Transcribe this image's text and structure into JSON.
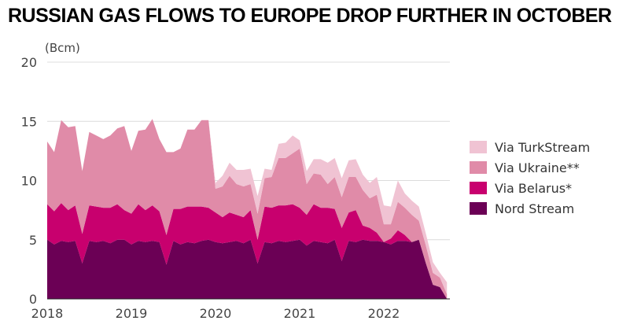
{
  "title": "RUSSIAN GAS FLOWS TO EUROPE DROP FURTHER IN OCTOBER",
  "chart_data": {
    "type": "area",
    "stacked": true,
    "unit_label": "(Bcm)",
    "ylim": [
      0,
      20
    ],
    "y_ticks": [
      0,
      5,
      10,
      15,
      20
    ],
    "x_ticks": [
      "2018",
      "2019",
      "2020",
      "2021",
      "2022"
    ],
    "x": [
      "2018-01",
      "2018-02",
      "2018-03",
      "2018-04",
      "2018-05",
      "2018-06",
      "2018-07",
      "2018-08",
      "2018-09",
      "2018-10",
      "2018-11",
      "2018-12",
      "2019-01",
      "2019-02",
      "2019-03",
      "2019-04",
      "2019-05",
      "2019-06",
      "2019-07",
      "2019-08",
      "2019-09",
      "2019-10",
      "2019-11",
      "2019-12",
      "2020-01",
      "2020-02",
      "2020-03",
      "2020-04",
      "2020-05",
      "2020-06",
      "2020-07",
      "2020-08",
      "2020-09",
      "2020-10",
      "2020-11",
      "2020-12",
      "2021-01",
      "2021-02",
      "2021-03",
      "2021-04",
      "2021-05",
      "2021-06",
      "2021-07",
      "2021-08",
      "2021-09",
      "2021-10",
      "2021-11",
      "2021-12",
      "2022-01",
      "2022-02",
      "2022-03",
      "2022-04",
      "2022-05",
      "2022-06",
      "2022-07",
      "2022-08",
      "2022-09",
      "2022-10"
    ],
    "grid": true,
    "legend_position": "right",
    "series": [
      {
        "name": "Nord Stream",
        "color": "#6b0055",
        "values": [
          5.0,
          4.6,
          4.9,
          4.8,
          4.9,
          3.0,
          4.9,
          4.8,
          4.9,
          4.7,
          5.0,
          5.0,
          4.6,
          4.9,
          4.8,
          4.9,
          4.8,
          2.9,
          4.9,
          4.6,
          4.8,
          4.7,
          4.9,
          5.0,
          4.8,
          4.7,
          4.8,
          4.9,
          4.7,
          5.0,
          3.0,
          4.8,
          4.7,
          4.9,
          4.8,
          4.9,
          5.0,
          4.5,
          4.9,
          4.8,
          4.7,
          5.0,
          3.2,
          4.9,
          4.8,
          5.0,
          4.9,
          4.9,
          4.8,
          4.6,
          4.9,
          4.9,
          4.8,
          5.0,
          3.0,
          1.2,
          1.0,
          0.0
        ]
      },
      {
        "name": "Via Belarus*",
        "color": "#c8006e",
        "values": [
          3.0,
          2.8,
          3.2,
          2.7,
          3.0,
          2.5,
          3.0,
          3.0,
          2.8,
          3.0,
          3.0,
          2.5,
          2.6,
          3.1,
          2.7,
          3.0,
          2.6,
          2.5,
          2.7,
          3.0,
          3.0,
          3.1,
          2.9,
          2.7,
          2.5,
          2.2,
          2.5,
          2.2,
          2.2,
          2.5,
          2.0,
          3.0,
          3.0,
          3.0,
          3.1,
          3.1,
          2.7,
          2.6,
          3.1,
          2.9,
          3.0,
          2.6,
          2.8,
          2.4,
          2.7,
          1.2,
          1.1,
          0.7,
          0.0,
          0.5,
          0.9,
          0.5,
          0.0,
          0.0,
          0.0,
          0.0,
          0.0,
          0.0
        ]
      },
      {
        "name": "Via Ukraine**",
        "color": "#e08ba8",
        "values": [
          5.3,
          5.0,
          7.0,
          7.0,
          6.7,
          5.3,
          6.2,
          6.0,
          5.8,
          6.1,
          6.4,
          7.1,
          5.3,
          6.2,
          6.8,
          7.3,
          6.1,
          7.0,
          4.8,
          5.1,
          6.5,
          6.5,
          7.3,
          7.4,
          2.0,
          2.6,
          3.1,
          2.6,
          2.6,
          2.2,
          2.2,
          2.4,
          2.6,
          4.0,
          4.0,
          4.3,
          5.0,
          2.6,
          2.6,
          2.8,
          2.0,
          2.7,
          2.6,
          3.0,
          2.8,
          3.0,
          2.5,
          3.2,
          1.5,
          1.2,
          2.4,
          2.3,
          2.3,
          1.6,
          1.5,
          1.0,
          0.8,
          0.4
        ]
      },
      {
        "name": "Via TurkStream",
        "color": "#f0c3d3",
        "values": [
          0.0,
          0.0,
          0.0,
          0.0,
          0.0,
          0.0,
          0.0,
          0.0,
          0.0,
          0.0,
          0.0,
          0.0,
          0.0,
          0.0,
          0.0,
          0.0,
          0.0,
          0.0,
          0.0,
          0.0,
          0.0,
          0.0,
          0.0,
          0.0,
          0.5,
          0.9,
          1.1,
          1.2,
          1.4,
          1.3,
          1.5,
          0.8,
          0.6,
          1.2,
          1.3,
          1.5,
          0.7,
          1.1,
          1.2,
          1.3,
          1.8,
          1.6,
          1.6,
          1.4,
          1.5,
          1.3,
          1.3,
          1.5,
          1.6,
          1.5,
          1.8,
          1.2,
          1.2,
          1.2,
          1.0,
          0.9,
          0.4,
          1.0
        ]
      }
    ]
  }
}
